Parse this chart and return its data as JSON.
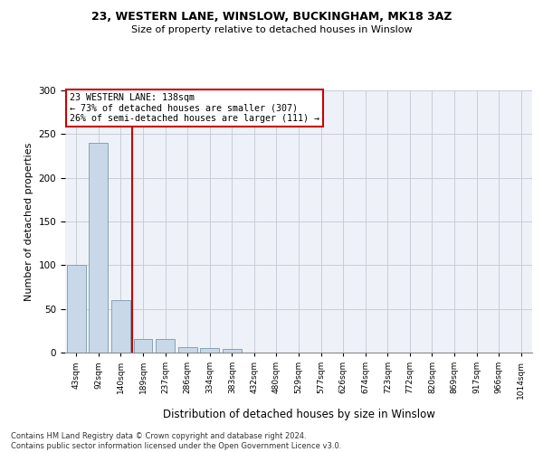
{
  "title1": "23, WESTERN LANE, WINSLOW, BUCKINGHAM, MK18 3AZ",
  "title2": "Size of property relative to detached houses in Winslow",
  "xlabel": "Distribution of detached houses by size in Winslow",
  "ylabel": "Number of detached properties",
  "annotation_line1": "23 WESTERN LANE: 138sqm",
  "annotation_line2": "← 73% of detached houses are smaller (307)",
  "annotation_line3": "26% of semi-detached houses are larger (111) →",
  "bin_labels": [
    "43sqm",
    "92sqm",
    "140sqm",
    "189sqm",
    "237sqm",
    "286sqm",
    "334sqm",
    "383sqm",
    "432sqm",
    "480sqm",
    "529sqm",
    "577sqm",
    "626sqm",
    "674sqm",
    "723sqm",
    "772sqm",
    "820sqm",
    "869sqm",
    "917sqm",
    "966sqm",
    "1014sqm"
  ],
  "bar_values": [
    100,
    240,
    60,
    16,
    16,
    6,
    5,
    4,
    0,
    0,
    0,
    0,
    0,
    0,
    0,
    0,
    0,
    0,
    0,
    0,
    0
  ],
  "bar_color": "#c8d8e8",
  "bar_edge_color": "#7799aa",
  "property_line_x": 2.5,
  "property_line_color": "#cc0000",
  "annotation_box_color": "#cc0000",
  "ylim": [
    0,
    300
  ],
  "yticks": [
    0,
    50,
    100,
    150,
    200,
    250,
    300
  ],
  "background_color": "#eef2f8",
  "grid_color": "#c8ccd8",
  "footer_line1": "Contains HM Land Registry data © Crown copyright and database right 2024.",
  "footer_line2": "Contains public sector information licensed under the Open Government Licence v3.0."
}
